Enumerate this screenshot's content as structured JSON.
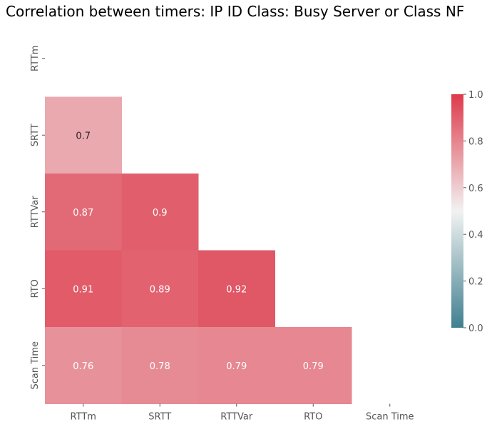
{
  "chart_data": {
    "type": "heatmap",
    "title": "Correlation between timers: IP ID Class: Busy Server or Class NF",
    "variables": [
      "RTTm",
      "SRTT",
      "RTTVar",
      "RTO",
      "Scan Time"
    ],
    "matrix_lower_triangle": [
      [],
      [
        0.7
      ],
      [
        0.87,
        0.9
      ],
      [
        0.91,
        0.89,
        0.92
      ],
      [
        0.76,
        0.78,
        0.79,
        0.79
      ]
    ],
    "value_labels": [
      [],
      [
        "0.7"
      ],
      [
        "0.87",
        "0.9"
      ],
      [
        "0.91",
        "0.89",
        "0.92"
      ],
      [
        "0.76",
        "0.78",
        "0.79",
        "0.79"
      ]
    ],
    "colorbar": {
      "range": [
        0.0,
        1.0
      ],
      "ticks": [
        "0.0",
        "0.2",
        "0.4",
        "0.6",
        "0.8",
        "1.0"
      ],
      "colors": {
        "low": "#3f7f8f",
        "mid": "#f2f2f2",
        "high": "#dd3a4b"
      }
    },
    "mask": "upper-triangle-including-diagonal",
    "grid": false
  }
}
